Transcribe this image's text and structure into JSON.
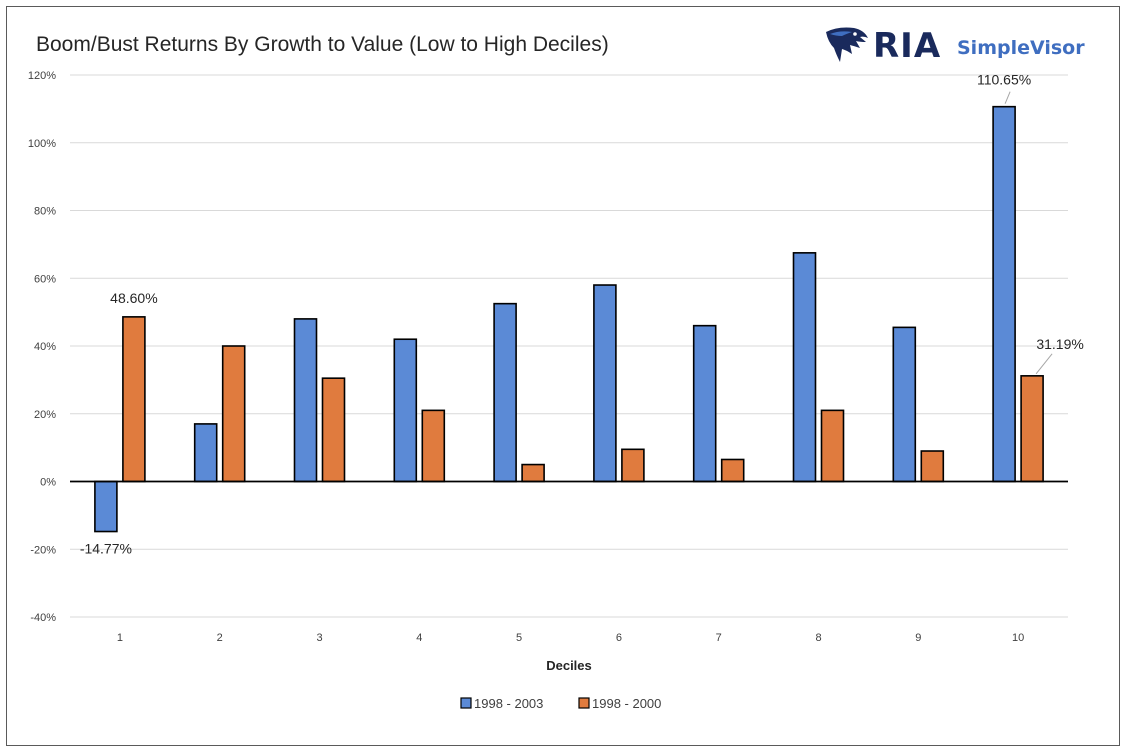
{
  "header": {
    "title": "Boom/Bust Returns By Growth to Value (Low to High Deciles)",
    "logo_primary": "RIA",
    "logo_secondary": "SimpleVisor",
    "logo_icon": "eagle-head-icon"
  },
  "chart_data": {
    "type": "bar",
    "title": "Boom/Bust Returns By Growth to Value (Low to High Deciles)",
    "xlabel": "Deciles",
    "ylabel": "",
    "categories": [
      "1",
      "2",
      "3",
      "4",
      "5",
      "6",
      "7",
      "8",
      "9",
      "10"
    ],
    "series": [
      {
        "name": "1998 - 2003",
        "color": "#5b8ad6",
        "values": [
          -14.77,
          17,
          48,
          42,
          52.5,
          58,
          46,
          67.5,
          45.5,
          110.65
        ]
      },
      {
        "name": "1998 - 2000",
        "color": "#e07b3e",
        "values": [
          48.6,
          40,
          30.5,
          21,
          5,
          9.5,
          6.5,
          21,
          9,
          31.19
        ]
      }
    ],
    "ylim": [
      -40,
      120
    ],
    "yticks": [
      "-40%",
      "-20%",
      "0%",
      "20%",
      "40%",
      "60%",
      "80%",
      "100%",
      "120%"
    ],
    "grid": true,
    "legend_position": "bottom-center",
    "annotations": [
      "-14.77%",
      "48.60%",
      "110.65%",
      "31.19%"
    ]
  }
}
